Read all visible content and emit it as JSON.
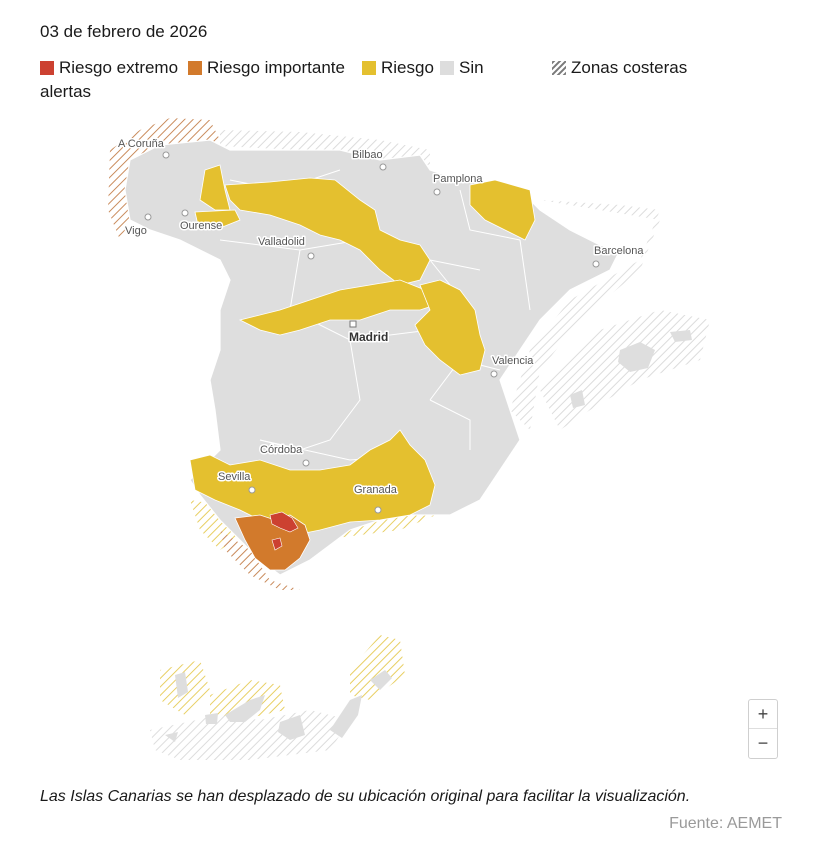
{
  "date": "03 de febrero de 2026",
  "legend": {
    "items": [
      {
        "label": "Riesgo extremo",
        "color": "#cc4131"
      },
      {
        "label": "Riesgo importante",
        "color": "#d27a2c"
      },
      {
        "label": "Riesgo",
        "color": "#e4c02f"
      },
      {
        "label": "Sin",
        "color": "#dddddd"
      },
      {
        "label": "Zonas costeras",
        "color": "#8a8a8a"
      }
    ],
    "wrap_text": "alertas"
  },
  "map": {
    "land_color": "#dedede",
    "cities": [
      {
        "name": "A Coruña"
      },
      {
        "name": "Bilbao"
      },
      {
        "name": "Pamplona"
      },
      {
        "name": "Vigo"
      },
      {
        "name": "Ourense"
      },
      {
        "name": "Valladolid"
      },
      {
        "name": "Barcelona"
      },
      {
        "name": "Madrid"
      },
      {
        "name": "Valencia"
      },
      {
        "name": "Córdoba"
      },
      {
        "name": "Sevilla"
      },
      {
        "name": "Granada"
      }
    ]
  },
  "zoom": {
    "in_label": "+",
    "out_label": "−"
  },
  "note": "Las Islas Canarias se han desplazado de su ubicación original para facilitar la visualización.",
  "source": "Fuente: AEMET"
}
